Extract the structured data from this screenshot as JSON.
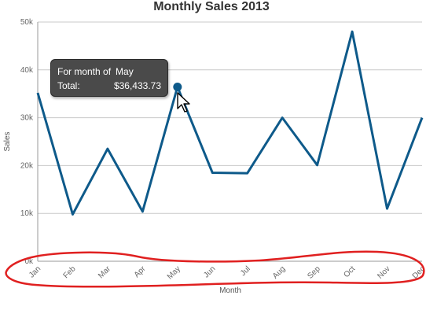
{
  "chart_data": {
    "type": "line",
    "title": "Monthly Sales 2013",
    "xlabel": "Month",
    "ylabel": "Sales",
    "categories": [
      "Jan",
      "Feb",
      "Mar",
      "Apr",
      "May",
      "Jun",
      "Jul",
      "Aug",
      "Sep",
      "Oct",
      "Nov",
      "Dec"
    ],
    "values": [
      35200,
      9800,
      23500,
      10400,
      36433.73,
      18500,
      18400,
      30000,
      20100,
      48000,
      11000,
      30000
    ],
    "ylim": [
      0,
      50000
    ],
    "yticks": [
      0,
      10000,
      20000,
      30000,
      40000,
      50000
    ],
    "ytick_labels": [
      "0k",
      "10k",
      "20k",
      "30k",
      "40k",
      "50k"
    ],
    "grid": true,
    "line_color": "#0e5a8a",
    "highlighted_index": 4
  },
  "tooltip": {
    "line1_label": "For month of",
    "line1_value": "May",
    "line2_label": "Total:",
    "line2_value": "$36,433.73"
  },
  "annotation": {
    "color": "#e02020",
    "shape": "hand-drawn ellipse around x-axis labels"
  }
}
